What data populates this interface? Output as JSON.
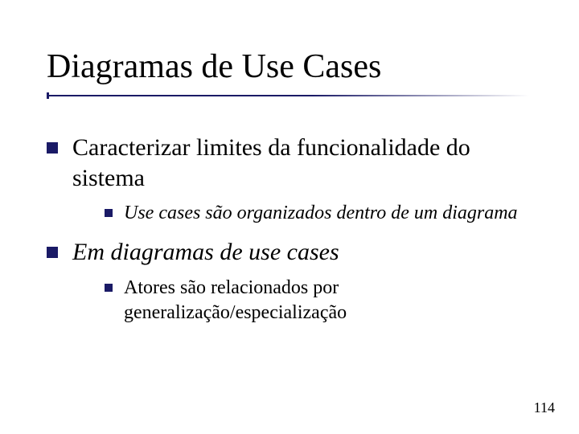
{
  "colors": {
    "bullet": "#1a1a66",
    "rule": "#1a1a66",
    "text": "#000000",
    "background": "#ffffff"
  },
  "typography": {
    "title_fontsize": 42,
    "l1_fontsize": 30,
    "l2_fontsize": 24,
    "font_family": "Georgia, serif"
  },
  "slide": {
    "title": "Diagramas de Use Cases",
    "page_number": "114",
    "items": [
      {
        "text": "Caracterizar limites da funcionalidade do sistema",
        "italic": false,
        "sub": [
          {
            "text": "Use cases são organizados dentro de um diagrama",
            "italic": true
          }
        ]
      },
      {
        "text": "Em diagramas de use cases",
        "italic": true,
        "sub": [
          {
            "text": "Atores são relacionados por generalização/especialização",
            "italic": false
          }
        ]
      }
    ]
  }
}
